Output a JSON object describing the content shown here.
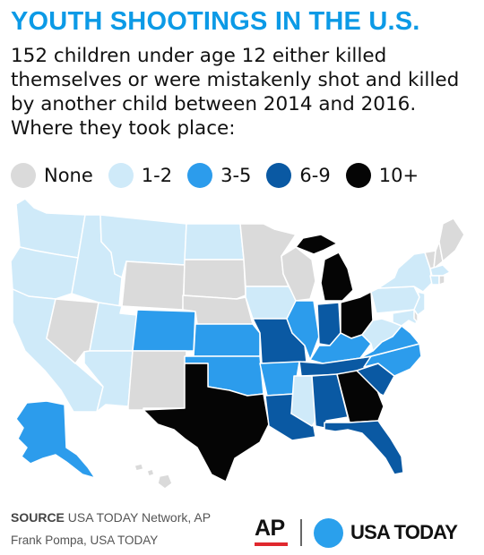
{
  "title": "YOUTH SHOOTINGS IN THE U.S.",
  "subtitle": "152 children under age 12 either killed themselves or were mistakenly shot and killed by another child between 2014 and 2016. Where they took place:",
  "colors": {
    "title": "#0c9ae6",
    "None": "#dadada",
    "1-2": "#cfeaf9",
    "3-5": "#2c9cec",
    "6-9": "#0a59a3",
    "10+": "#050505",
    "border": "#ffffff",
    "ap_red": "#e0282e",
    "usa_blue": "#2aa0ec"
  },
  "legend": [
    {
      "label": "None",
      "key": "None"
    },
    {
      "label": "1-2",
      "key": "1-2"
    },
    {
      "label": "3-5",
      "key": "3-5"
    },
    {
      "label": "6-9",
      "key": "6-9"
    },
    {
      "label": "10+",
      "key": "10+"
    }
  ],
  "map": {
    "categories": {
      "WA": "1-2",
      "OR": "1-2",
      "CA": "1-2",
      "NV": "None",
      "ID": "1-2",
      "MT": "1-2",
      "WY": "None",
      "UT": "1-2",
      "AZ": "1-2",
      "CO": "3-5",
      "NM": "None",
      "ND": "1-2",
      "SD": "None",
      "NE": "None",
      "KS": "3-5",
      "OK": "3-5",
      "TX": "10+",
      "MN": "None",
      "IA": "1-2",
      "MO": "6-9",
      "AR": "3-5",
      "LA": "6-9",
      "WI": "None",
      "IL": "3-5",
      "MI": "10+",
      "IN": "6-9",
      "OH": "10+",
      "KY": "3-5",
      "TN": "6-9",
      "MS": "1-2",
      "AL": "6-9",
      "GA": "10+",
      "FL": "6-9",
      "SC": "6-9",
      "NC": "3-5",
      "VA": "3-5",
      "WV": "1-2",
      "PA": "1-2",
      "NY": "1-2",
      "VT": "None",
      "NH": "None",
      "ME": "None",
      "MA": "1-2",
      "CT": "1-2",
      "RI": "None",
      "NJ": "1-2",
      "DE": "None",
      "MD": "1-2",
      "AK": "3-5",
      "HI": "None"
    }
  },
  "footer": {
    "source_label": "SOURCE",
    "source_text": "USA TODAY Network, AP",
    "credit": "Frank Pompa, USA TODAY",
    "ap_logo": "AP",
    "usa_today_logo": "USA TODAY"
  }
}
